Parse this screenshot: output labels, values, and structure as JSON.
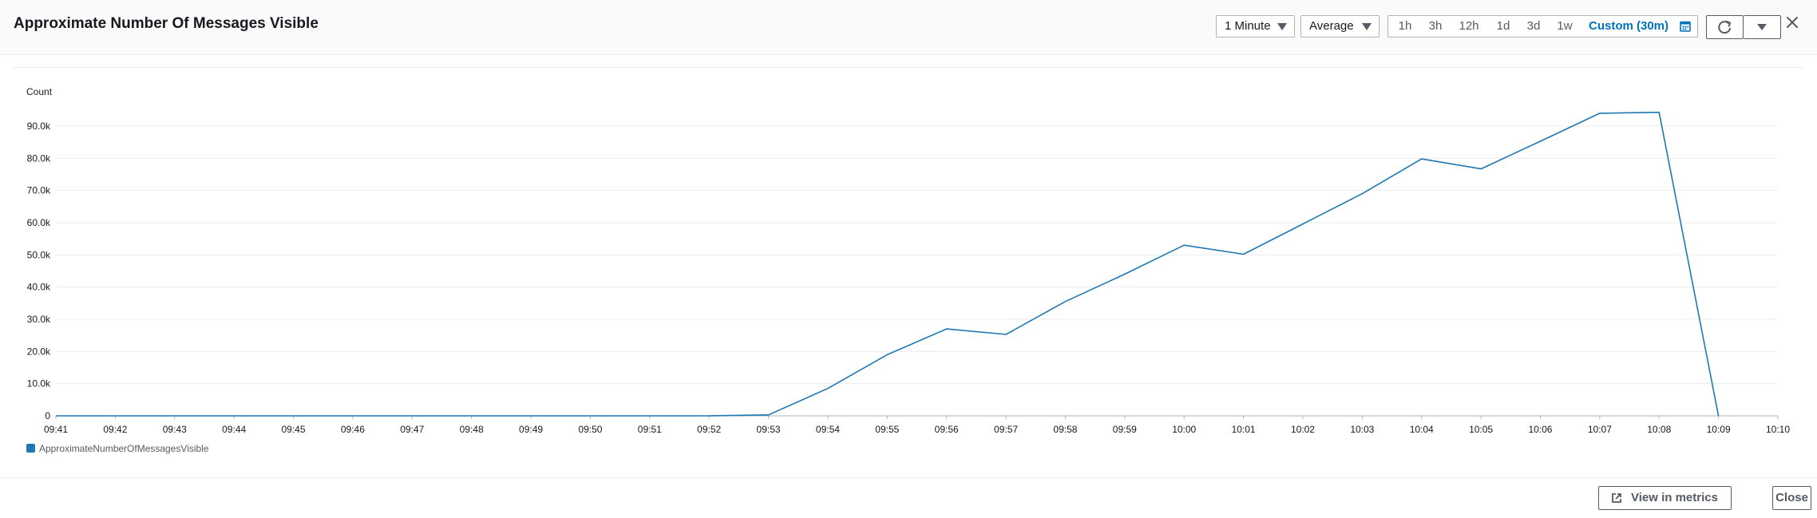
{
  "header": {
    "title": "Approximate Number Of Messages Visible",
    "period_select": "1 Minute",
    "stat_select": "Average",
    "time_ranges": [
      "1h",
      "3h",
      "12h",
      "1d",
      "3d",
      "1w"
    ],
    "custom_range": "Custom (30m)",
    "icons": {
      "calendar": "calendar-icon",
      "refresh": "refresh-icon",
      "dropdown": "caret-down-icon",
      "close": "close-icon"
    }
  },
  "chart_data": {
    "type": "line",
    "ylabel": "Count",
    "ylim": [
      0,
      90000
    ],
    "y_ticks": [
      {
        "value": 0,
        "label": "0"
      },
      {
        "value": 10000,
        "label": "10.0k"
      },
      {
        "value": 20000,
        "label": "20.0k"
      },
      {
        "value": 30000,
        "label": "30.0k"
      },
      {
        "value": 40000,
        "label": "40.0k"
      },
      {
        "value": 50000,
        "label": "50.0k"
      },
      {
        "value": 60000,
        "label": "60.0k"
      },
      {
        "value": 70000,
        "label": "70.0k"
      },
      {
        "value": 80000,
        "label": "80.0k"
      },
      {
        "value": 90000,
        "label": "90.0k"
      }
    ],
    "x_ticks": [
      "09:41",
      "09:42",
      "09:43",
      "09:44",
      "09:45",
      "09:46",
      "09:47",
      "09:48",
      "09:49",
      "09:50",
      "09:51",
      "09:52",
      "09:53",
      "09:54",
      "09:55",
      "09:56",
      "09:57",
      "09:58",
      "09:59",
      "10:00",
      "10:01",
      "10:02",
      "10:03",
      "10:04",
      "10:05",
      "10:06",
      "10:07",
      "10:08",
      "10:09",
      "10:10"
    ],
    "grid": true,
    "legend_position": "bottom-left",
    "color": "#1f77b4",
    "series": [
      {
        "name": "ApproximateNumberOfMessagesVisible",
        "x": [
          "09:41",
          "09:42",
          "09:43",
          "09:44",
          "09:45",
          "09:46",
          "09:47",
          "09:48",
          "09:49",
          "09:50",
          "09:51",
          "09:52",
          "09:53",
          "09:54",
          "09:55",
          "09:56",
          "09:57",
          "09:58",
          "09:59",
          "10:00",
          "10:01",
          "10:02",
          "10:03",
          "10:04",
          "10:05",
          "10:06",
          "10:07",
          "10:08",
          "10:09"
        ],
        "values": [
          0,
          0,
          0,
          0,
          0,
          0,
          0,
          0,
          0,
          0,
          0,
          0,
          300,
          8500,
          19000,
          27000,
          25300,
          35500,
          44000,
          53000,
          50200,
          59600,
          69000,
          79800,
          76700,
          85300,
          94000,
          94300,
          0
        ]
      }
    ]
  },
  "footer": {
    "view_in_metrics": "View in metrics",
    "close": "Close",
    "external_icon": "external-link-icon"
  }
}
